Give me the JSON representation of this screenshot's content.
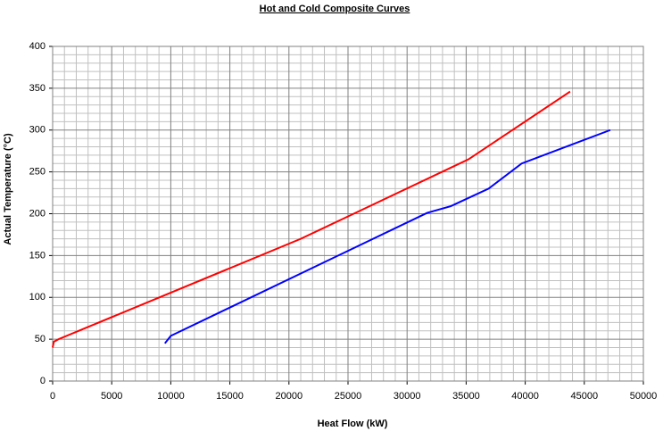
{
  "chart_data": {
    "type": "line",
    "title": "Hot and Cold Composite  Curves",
    "x_label": "Heat Flow (kW)",
    "y_label": "Actual Temperature (°C)",
    "xlim": [
      0,
      50000
    ],
    "xticks": [
      0,
      5000,
      10000,
      15000,
      20000,
      25000,
      30000,
      35000,
      40000,
      45000,
      50000
    ],
    "ylim": [
      0,
      400
    ],
    "yticks": [
      0,
      50,
      100,
      150,
      200,
      250,
      300,
      350,
      400
    ],
    "grid": true,
    "series": [
      {
        "color": "#ff0000",
        "x": [
          0,
          100,
          500,
          21000,
          35200,
          43800
        ],
        "values": [
          40,
          47,
          50,
          170,
          265,
          346
        ]
      },
      {
        "color": "#0000ff",
        "x": [
          9500,
          10000,
          31700,
          33700,
          36900,
          39700,
          47200
        ],
        "values": [
          45,
          54,
          201,
          209,
          230,
          260,
          300
        ]
      }
    ]
  }
}
